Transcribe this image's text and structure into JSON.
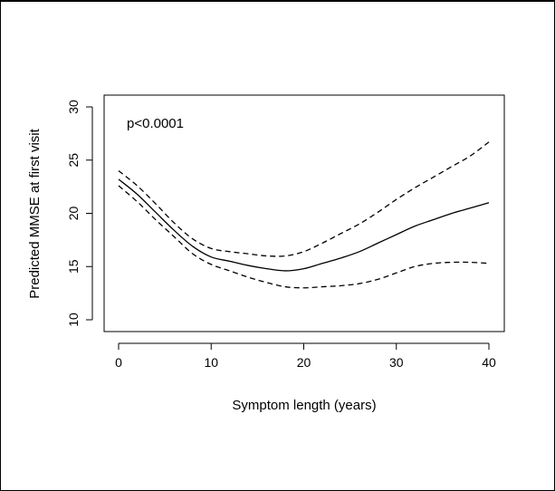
{
  "chart_data": {
    "type": "line",
    "title": "",
    "xlabel": "Symptom length (years)",
    "ylabel": "Predicted MMSE at first visit",
    "annotation": "p<0.0001",
    "xlim": [
      0,
      40
    ],
    "ylim": [
      10,
      30
    ],
    "x_ticks": [
      0,
      10,
      20,
      30,
      40
    ],
    "y_ticks": [
      10,
      15,
      20,
      25,
      30
    ],
    "grid": false,
    "series": [
      {
        "style": "solid",
        "x": [
          0,
          2,
          4,
          6,
          8,
          10,
          12,
          14,
          16,
          18,
          20,
          22,
          24,
          26,
          28,
          30,
          32,
          34,
          36,
          38,
          40
        ],
        "y": [
          23.2,
          21.8,
          20.1,
          18.4,
          16.9,
          15.9,
          15.5,
          15.1,
          14.8,
          14.6,
          14.8,
          15.3,
          15.8,
          16.4,
          17.2,
          18.0,
          18.8,
          19.4,
          20.0,
          20.5,
          21.0
        ]
      },
      {
        "style": "dashed",
        "x": [
          0,
          2,
          4,
          6,
          8,
          10,
          12,
          14,
          16,
          18,
          20,
          22,
          24,
          26,
          28,
          30,
          32,
          34,
          36,
          38,
          40
        ],
        "y": [
          24.0,
          22.6,
          20.9,
          19.1,
          17.6,
          16.7,
          16.4,
          16.2,
          16.0,
          16.0,
          16.4,
          17.2,
          18.1,
          19.0,
          20.1,
          21.3,
          22.4,
          23.4,
          24.4,
          25.4,
          26.7
        ]
      },
      {
        "style": "dashed",
        "x": [
          0,
          2,
          4,
          6,
          8,
          10,
          12,
          14,
          16,
          18,
          20,
          22,
          24,
          26,
          28,
          30,
          32,
          34,
          36,
          38,
          40
        ],
        "y": [
          22.6,
          21.1,
          19.4,
          17.8,
          16.2,
          15.2,
          14.6,
          14.0,
          13.5,
          13.1,
          13.0,
          13.1,
          13.2,
          13.4,
          13.8,
          14.4,
          15.0,
          15.3,
          15.4,
          15.4,
          15.3
        ]
      }
    ]
  }
}
